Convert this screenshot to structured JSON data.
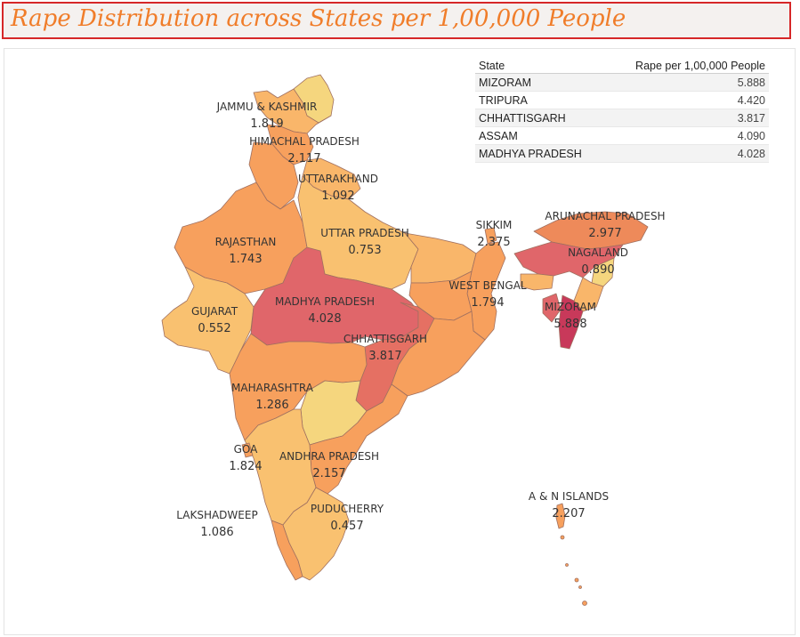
{
  "title": "Rape Distribution across States per 1,00,000 People",
  "table": {
    "headers": [
      "State",
      "Rape per 1,00,000 People"
    ],
    "rows": [
      {
        "state": "MIZORAM",
        "value": "5.888"
      },
      {
        "state": "TRIPURA",
        "value": "4.420"
      },
      {
        "state": "CHHATTISGARH",
        "value": "3.817"
      },
      {
        "state": "ASSAM",
        "value": "4.090"
      },
      {
        "state": "MADHYA PRADESH",
        "value": "4.028"
      }
    ]
  },
  "map_labels": [
    {
      "id": "jk",
      "name": "JAMMU & KASHMIR",
      "value": "1.819"
    },
    {
      "id": "hp",
      "name": "HIMACHAL PRADESH",
      "value": "2.117"
    },
    {
      "id": "uk",
      "name": "UTTARAKHAND",
      "value": "1.092"
    },
    {
      "id": "rj",
      "name": "RAJASTHAN",
      "value": "1.743"
    },
    {
      "id": "up",
      "name": "UTTAR PRADESH",
      "value": "0.753"
    },
    {
      "id": "sk",
      "name": "SIKKIM",
      "value": "2.375"
    },
    {
      "id": "ar",
      "name": "ARUNACHAL PRADESH",
      "value": "2.977"
    },
    {
      "id": "nl",
      "name": "NAGALAND",
      "value": "0.890"
    },
    {
      "id": "wb",
      "name": "WEST BENGAL",
      "value": "1.794"
    },
    {
      "id": "gj",
      "name": "GUJARAT",
      "value": "0.552"
    },
    {
      "id": "mp",
      "name": "MADHYA PRADESH",
      "value": "4.028"
    },
    {
      "id": "mz",
      "name": "MIZORAM",
      "value": "5.888"
    },
    {
      "id": "cg",
      "name": "CHHATTISGARH",
      "value": "3.817"
    },
    {
      "id": "mh",
      "name": "MAHARASHTRA",
      "value": "1.286"
    },
    {
      "id": "ga",
      "name": "GOA",
      "value": "1.824"
    },
    {
      "id": "ap",
      "name": "ANDHRA PRADESH",
      "value": "2.157"
    },
    {
      "id": "an",
      "name": "A & N ISLANDS",
      "value": "2.207"
    },
    {
      "id": "ld",
      "name": "LAKSHADWEEP",
      "value": "1.086"
    },
    {
      "id": "py",
      "name": "PUDUCHERRY",
      "value": "0.457"
    }
  ],
  "colors": {
    "title_text": "#f07d2a",
    "title_border": "#d62728",
    "very_low": "#f5d67e",
    "low": "#f9b66a",
    "mid": "#f7a05d",
    "high": "#ee8a5a",
    "very_high": "#e0666a",
    "max": "#c8395a"
  }
}
